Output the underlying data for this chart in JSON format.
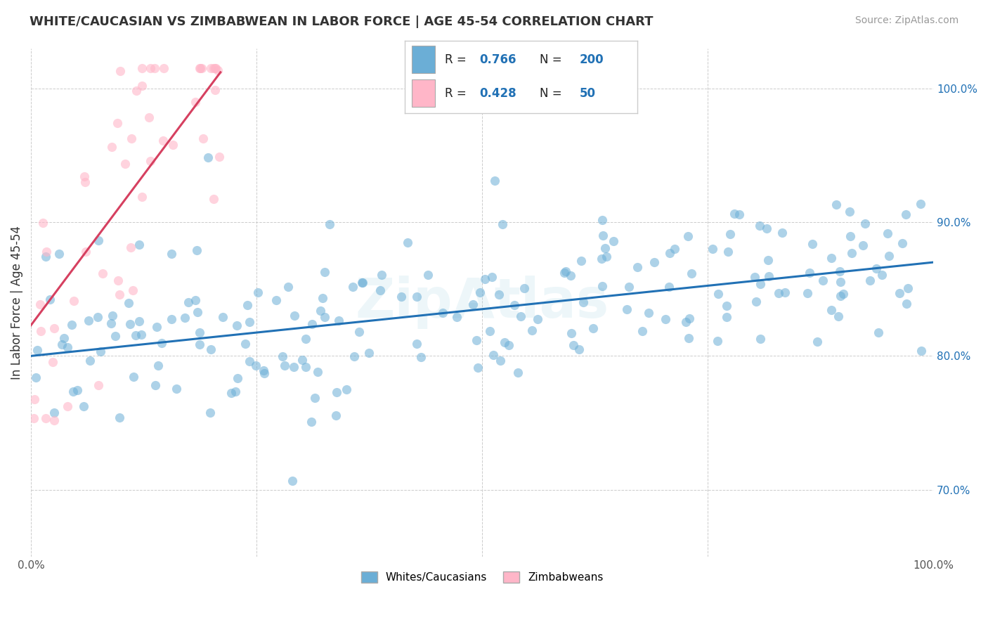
{
  "title": "WHITE/CAUCASIAN VS ZIMBABWEAN IN LABOR FORCE | AGE 45-54 CORRELATION CHART",
  "source": "Source: ZipAtlas.com",
  "ylabel": "In Labor Force | Age 45-54",
  "xlim": [
    0.0,
    1.0
  ],
  "ylim": [
    0.65,
    1.03
  ],
  "x_ticks": [
    0.0,
    0.25,
    0.5,
    0.75,
    1.0
  ],
  "x_tick_labels": [
    "0.0%",
    "",
    "",
    "",
    "100.0%"
  ],
  "y_ticks": [
    0.7,
    0.8,
    0.9,
    1.0
  ],
  "y_tick_labels": [
    "70.0%",
    "80.0%",
    "90.0%",
    "100.0%"
  ],
  "blue_color": "#6baed6",
  "blue_line_color": "#2171b5",
  "pink_color": "#ffb6c8",
  "pink_line_color": "#d64060",
  "legend_blue_R": "0.766",
  "legend_blue_N": "200",
  "legend_pink_R": "0.428",
  "legend_pink_N": "50",
  "blue_intercept": 0.8,
  "blue_slope": 0.07,
  "pink_intercept": 0.823,
  "pink_slope": 0.9,
  "blue_N": 200,
  "pink_N": 50
}
